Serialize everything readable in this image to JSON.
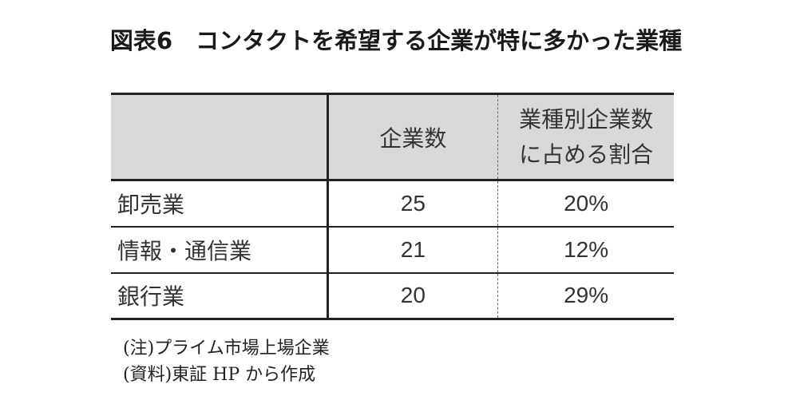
{
  "title": "図表6　コンタクトを希望する企業が特に多かった業種",
  "table": {
    "headers": {
      "category": "",
      "companies": "企業数",
      "share_line1": "業種別企業数",
      "share_line2": "に占める割合"
    },
    "rows": [
      {
        "industry": "卸売業",
        "companies": "25",
        "share": "20%"
      },
      {
        "industry": "情報・通信業",
        "companies": "21",
        "share": "12%"
      },
      {
        "industry": "銀行業",
        "companies": "20",
        "share": "29%"
      }
    ]
  },
  "notes": {
    "note": "(注)プライム市場上場企業",
    "source": "(資料)東証 HP から作成"
  }
}
